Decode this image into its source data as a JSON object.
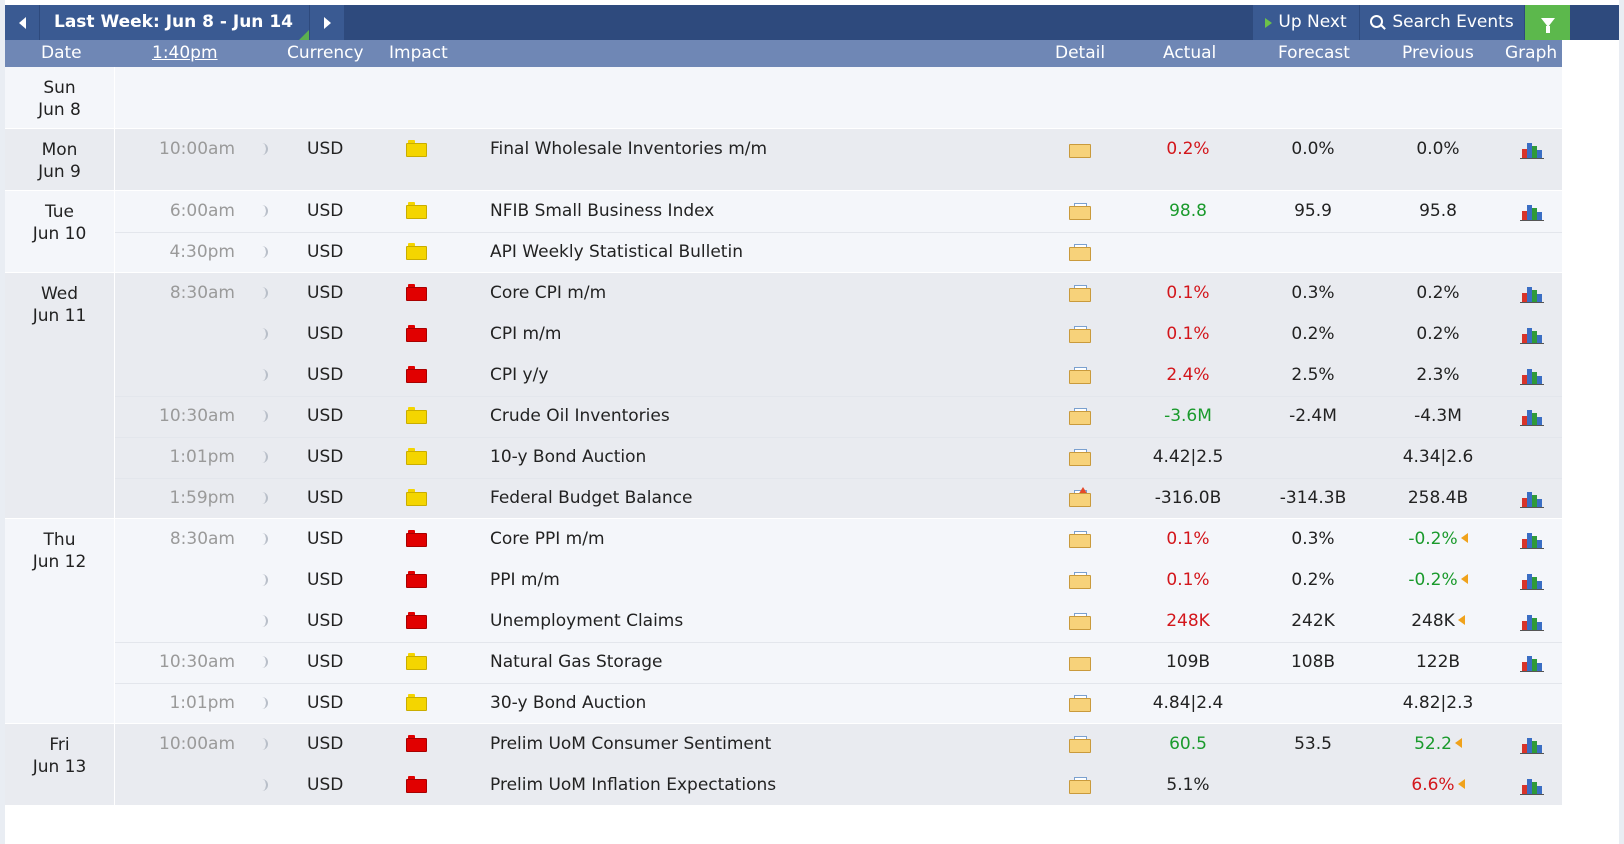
{
  "toolbar": {
    "week_label": "Last Week: Jun 8 - Jun 14",
    "up_next_label": "Up Next",
    "search_label": "Search Events"
  },
  "columns": {
    "date": "Date",
    "time": "1:40pm",
    "currency": "Currency",
    "impact": "Impact",
    "detail": "Detail",
    "actual": "Actual",
    "forecast": "Forecast",
    "previous": "Previous",
    "graph": "Graph"
  },
  "colors": {
    "toolbar_bg": "#2e4a7d",
    "header_bg": "#6f87b5",
    "row_alt_bg": "#e9ebf0",
    "row_bg": "#f4f6fa",
    "better": "#1a9a2c",
    "worse": "#d3161b",
    "high_impact": "#e10000",
    "medium_impact": "#f4d500",
    "filter_green": "#5cb84c"
  },
  "days": [
    {
      "day": "Sun",
      "date": "Jun 8",
      "events": []
    },
    {
      "day": "Mon",
      "date": "Jun 9",
      "events": [
        {
          "time": "10:00am",
          "currency": "USD",
          "impact": "medium",
          "name": "Final Wholesale Inventories m/m",
          "detail_icon": "folder-icon",
          "actual": "0.2%",
          "actual_tone": "worse",
          "forecast": "0.0%",
          "previous": "0.0%",
          "previous_tone": "",
          "revised": false,
          "graph": true
        }
      ]
    },
    {
      "day": "Tue",
      "date": "Jun 10",
      "events": [
        {
          "time": "6:00am",
          "currency": "USD",
          "impact": "medium",
          "name": "NFIB Small Business Index",
          "detail_icon": "folder-doc-icon",
          "actual": "98.8",
          "actual_tone": "better",
          "forecast": "95.9",
          "previous": "95.8",
          "previous_tone": "",
          "revised": false,
          "graph": true
        },
        {
          "time": "4:30pm",
          "currency": "USD",
          "impact": "medium",
          "name": "API Weekly Statistical Bulletin",
          "detail_icon": "folder-doc-icon",
          "actual": "",
          "actual_tone": "",
          "forecast": "",
          "previous": "",
          "previous_tone": "",
          "revised": false,
          "graph": false
        }
      ]
    },
    {
      "day": "Wed",
      "date": "Jun 11",
      "events": [
        {
          "time": "8:30am",
          "currency": "USD",
          "impact": "high",
          "name": "Core CPI m/m",
          "detail_icon": "folder-doc-icon",
          "actual": "0.1%",
          "actual_tone": "worse",
          "forecast": "0.3%",
          "previous": "0.2%",
          "previous_tone": "",
          "revised": false,
          "graph": true
        },
        {
          "time": "",
          "currency": "USD",
          "impact": "high",
          "name": "CPI m/m",
          "detail_icon": "folder-doc-icon",
          "actual": "0.1%",
          "actual_tone": "worse",
          "forecast": "0.2%",
          "previous": "0.2%",
          "previous_tone": "",
          "revised": false,
          "graph": true
        },
        {
          "time": "",
          "currency": "USD",
          "impact": "high",
          "name": "CPI y/y",
          "detail_icon": "folder-doc-icon",
          "actual": "2.4%",
          "actual_tone": "worse",
          "forecast": "2.5%",
          "previous": "2.3%",
          "previous_tone": "",
          "revised": false,
          "graph": true
        },
        {
          "time": "10:30am",
          "currency": "USD",
          "impact": "medium",
          "name": "Crude Oil Inventories",
          "detail_icon": "folder-doc-icon",
          "actual": "-3.6M",
          "actual_tone": "better",
          "forecast": "-2.4M",
          "previous": "-4.3M",
          "previous_tone": "",
          "revised": false,
          "graph": true
        },
        {
          "time": "1:01pm",
          "currency": "USD",
          "impact": "medium",
          "name": "10-y Bond Auction",
          "detail_icon": "folder-doc-icon",
          "actual": "4.42|2.5",
          "actual_tone": "",
          "forecast": "",
          "previous": "4.34|2.6",
          "previous_tone": "",
          "revised": false,
          "graph": false
        },
        {
          "time": "1:59pm",
          "currency": "USD",
          "impact": "medium",
          "name": "Federal Budget Balance",
          "detail_icon": "folder-star-icon",
          "actual": "-316.0B",
          "actual_tone": "",
          "forecast": "-314.3B",
          "previous": "258.4B",
          "previous_tone": "",
          "revised": false,
          "graph": true
        }
      ]
    },
    {
      "day": "Thu",
      "date": "Jun 12",
      "events": [
        {
          "time": "8:30am",
          "currency": "USD",
          "impact": "high",
          "name": "Core PPI m/m",
          "detail_icon": "folder-doc-icon",
          "actual": "0.1%",
          "actual_tone": "worse",
          "forecast": "0.3%",
          "previous": "-0.2%",
          "previous_tone": "better",
          "revised": true,
          "graph": true
        },
        {
          "time": "",
          "currency": "USD",
          "impact": "high",
          "name": "PPI m/m",
          "detail_icon": "folder-doc-icon",
          "actual": "0.1%",
          "actual_tone": "worse",
          "forecast": "0.2%",
          "previous": "-0.2%",
          "previous_tone": "better",
          "revised": true,
          "graph": true
        },
        {
          "time": "",
          "currency": "USD",
          "impact": "high",
          "name": "Unemployment Claims",
          "detail_icon": "folder-doc-icon",
          "actual": "248K",
          "actual_tone": "worse",
          "forecast": "242K",
          "previous": "248K",
          "previous_tone": "",
          "revised": true,
          "graph": true
        },
        {
          "time": "10:30am",
          "currency": "USD",
          "impact": "medium",
          "name": "Natural Gas Storage",
          "detail_icon": "folder-icon",
          "actual": "109B",
          "actual_tone": "",
          "forecast": "108B",
          "previous": "122B",
          "previous_tone": "",
          "revised": false,
          "graph": true
        },
        {
          "time": "1:01pm",
          "currency": "USD",
          "impact": "medium",
          "name": "30-y Bond Auction",
          "detail_icon": "folder-doc-icon",
          "actual": "4.84|2.4",
          "actual_tone": "",
          "forecast": "",
          "previous": "4.82|2.3",
          "previous_tone": "",
          "revised": false,
          "graph": false
        }
      ]
    },
    {
      "day": "Fri",
      "date": "Jun 13",
      "events": [
        {
          "time": "10:00am",
          "currency": "USD",
          "impact": "high",
          "name": "Prelim UoM Consumer Sentiment",
          "detail_icon": "folder-doc-icon",
          "actual": "60.5",
          "actual_tone": "better",
          "forecast": "53.5",
          "previous": "52.2",
          "previous_tone": "better",
          "revised": true,
          "graph": true
        },
        {
          "time": "",
          "currency": "USD",
          "impact": "high",
          "name": "Prelim UoM Inflation Expectations",
          "detail_icon": "folder-doc-icon",
          "actual": "5.1%",
          "actual_tone": "",
          "forecast": "",
          "previous": "6.6%",
          "previous_tone": "worse",
          "revised": true,
          "graph": true
        }
      ]
    }
  ]
}
